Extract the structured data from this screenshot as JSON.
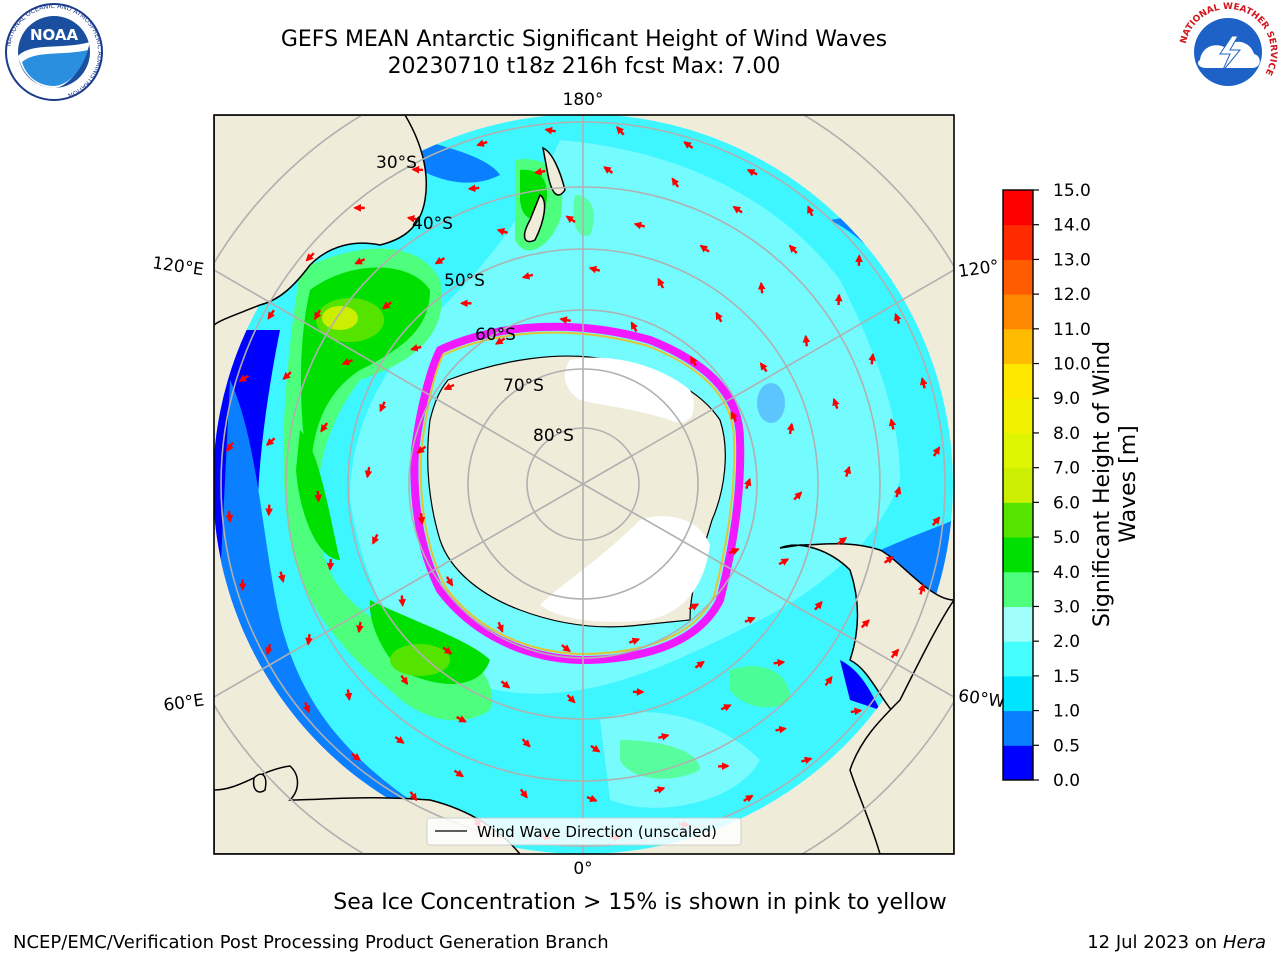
{
  "title": {
    "line1": "GEFS MEAN Antarctic Significant Height of Wind Waves",
    "line2": "20230710 t18z 216h fcst   Max: 7.00"
  },
  "map": {
    "lon_labels": [
      "180°",
      "120°E",
      "120°",
      "60°E",
      "60°W",
      "0°"
    ],
    "lat_labels": [
      "30°S",
      "40°S",
      "50°S",
      "60°S",
      "70°S",
      "80°S"
    ],
    "legend_label": "Wind Wave Direction (unscaled)"
  },
  "colorbar": {
    "label_line1": "Significant Height of Wind",
    "label_line2": "Waves [m]",
    "ticks": [
      "0.0",
      "0.5",
      "1.0",
      "1.5",
      "2.0",
      "3.0",
      "4.0",
      "5.0",
      "6.0",
      "7.0",
      "8.0",
      "9.0",
      "10.0",
      "11.0",
      "12.0",
      "13.0",
      "14.0",
      "15.0"
    ],
    "colors": [
      "#0000ff",
      "#0a7fff",
      "#00e5ff",
      "#45ffff",
      "#a0fffb",
      "#4dff7c",
      "#00e000",
      "#55e400",
      "#ccee00",
      "#ddf500",
      "#f2f200",
      "#ffe800",
      "#ffbb00",
      "#ff8800",
      "#ff5c00",
      "#ff2a00",
      "#ff0000"
    ]
  },
  "logos": {
    "noaa_text": "NOAA",
    "noaa_ring": "NATIONAL OCEANIC AND ATMOSPHERIC ADMINISTRATION",
    "noaa_ring_bottom": "U.S. DEPARTMENT OF COMMERCE",
    "nws_ring": "NATIONAL WEATHER SERVICE"
  },
  "note": "Sea Ice Concentration > 15% is shown in pink to yellow",
  "footer": {
    "credit": "NCEP/EMC/Verification Post Processing Product Generation Branch",
    "date": "12 Jul 2023 on",
    "host": "Hera"
  }
}
